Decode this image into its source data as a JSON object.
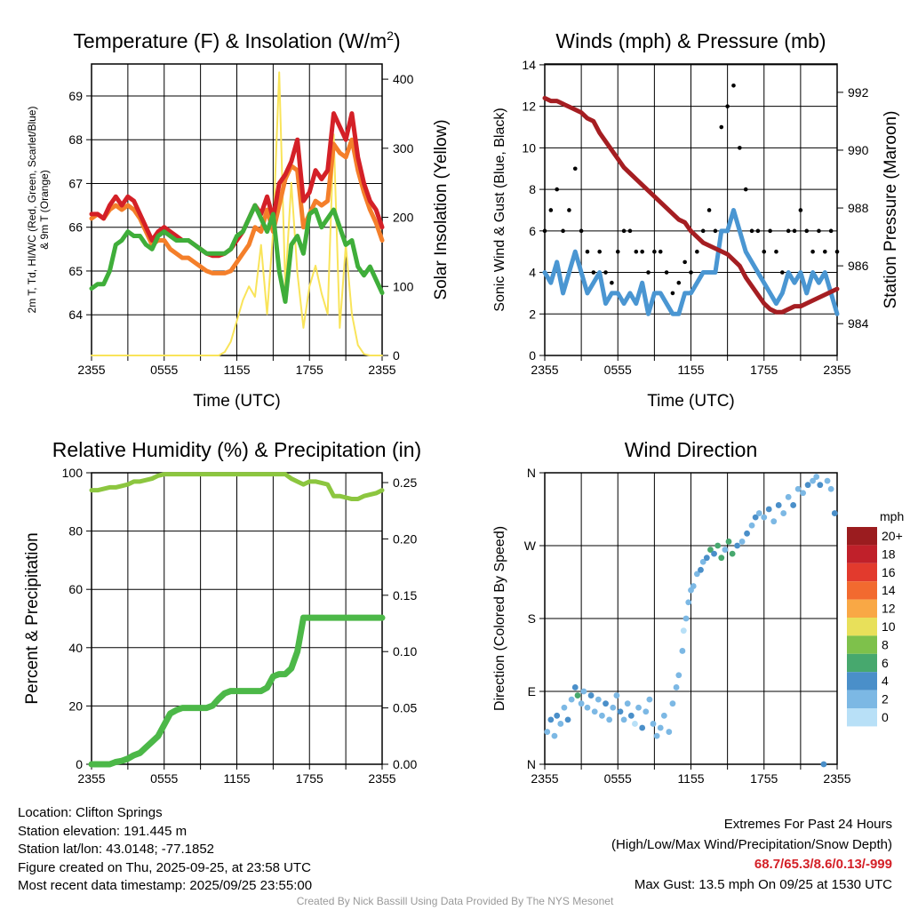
{
  "chart_data": [
    {
      "type": "line",
      "title": "Temperature (F) & Insolation (W/m2)",
      "xlabel": "Time (UTC)",
      "ylabel": "2m T, Td, HI/WC (Red, Green, Scarlet/Blue) & 9m T (Orange)",
      "ylabel_right": "Solar Insolation (Yellow)",
      "xticks": [
        "2355",
        "0555",
        "1155",
        "1755",
        "2355"
      ],
      "yticks": [
        "64",
        "65",
        "66",
        "67",
        "68",
        "69"
      ],
      "yticks_right": [
        "0",
        "100",
        "200",
        "300",
        "400"
      ],
      "ylim": [
        63.07,
        69.73
      ],
      "ylim_right": [
        0,
        422
      ],
      "x_hours_step": 0.5,
      "series": [
        {
          "name": "2m T",
          "color": "#d42027",
          "axis": "left",
          "values": [
            66.3,
            66.3,
            66.2,
            66.5,
            66.7,
            66.5,
            66.7,
            66.6,
            66.3,
            66.0,
            65.7,
            65.9,
            66.0,
            65.9,
            65.8,
            65.7,
            65.7,
            65.6,
            65.5,
            65.4,
            65.35,
            65.35,
            65.4,
            65.5,
            65.7,
            65.9,
            66.2,
            66.5,
            66.3,
            66.7,
            66.2,
            67.0,
            67.2,
            67.5,
            68.0,
            66.6,
            66.8,
            67.3,
            67.1,
            67.3,
            68.6,
            68.3,
            68.0,
            68.6,
            67.6,
            67.0,
            66.6,
            66.4,
            66.0
          ]
        },
        {
          "name": "9m T",
          "color": "#f47f2a",
          "axis": "left",
          "values": [
            66.2,
            66.3,
            66.2,
            66.4,
            66.5,
            66.4,
            66.5,
            66.4,
            66.2,
            65.9,
            65.6,
            65.7,
            65.7,
            65.5,
            65.4,
            65.3,
            65.3,
            65.2,
            65.1,
            65.0,
            64.95,
            64.95,
            64.95,
            65.0,
            65.2,
            65.4,
            65.6,
            66.0,
            65.9,
            66.4,
            65.9,
            66.5,
            67.1,
            67.4,
            67.3,
            66.0,
            66.3,
            66.6,
            66.5,
            66.6,
            67.9,
            67.7,
            67.6,
            68.0,
            67.3,
            66.8,
            66.4,
            66.1,
            65.7
          ]
        },
        {
          "name": "Td",
          "color": "#3fae3a",
          "axis": "left",
          "values": [
            64.6,
            64.7,
            64.7,
            65.0,
            65.6,
            65.7,
            65.9,
            65.8,
            65.8,
            65.6,
            65.5,
            65.8,
            65.9,
            65.8,
            65.7,
            65.7,
            65.7,
            65.6,
            65.5,
            65.4,
            65.4,
            65.4,
            65.4,
            65.5,
            65.8,
            65.9,
            66.2,
            66.5,
            66.2,
            65.9,
            66.3,
            65.0,
            64.3,
            65.6,
            65.8,
            65.4,
            66.3,
            66.4,
            66.0,
            66.2,
            66.4,
            66.0,
            65.6,
            65.7,
            65.1,
            64.9,
            65.1,
            64.8,
            64.5
          ]
        },
        {
          "name": "Solar Insolation",
          "color": "#f9e45a",
          "axis": "right",
          "values": [
            0,
            0,
            0,
            0,
            0,
            0,
            0,
            0,
            0,
            0,
            0,
            0,
            0,
            0,
            0,
            0,
            0,
            0,
            0,
            0,
            0,
            0,
            5,
            20,
            50,
            80,
            100,
            85,
            160,
            60,
            180,
            410,
            100,
            250,
            120,
            40,
            100,
            130,
            90,
            60,
            320,
            40,
            160,
            60,
            15,
            2,
            0,
            0,
            0
          ]
        }
      ]
    },
    {
      "type": "line",
      "title": "Winds (mph) & Pressure (mb)",
      "xlabel": "Time (UTC)",
      "ylabel": "Sonic Wind & Gust (Blue, Black)",
      "ylabel_right": "Station Pressure (Maroon)",
      "xticks": [
        "2355",
        "0555",
        "1155",
        "1755",
        "2355"
      ],
      "yticks": [
        "0",
        "2",
        "4",
        "6",
        "8",
        "10",
        "12",
        "14"
      ],
      "yticks_right": [
        "984",
        "986",
        "988",
        "990",
        "992"
      ],
      "ylim": [
        0,
        14.04
      ],
      "ylim_right": [
        982.9,
        992.98
      ],
      "x_hours_step": 0.5,
      "series": [
        {
          "name": "Sonic Wind",
          "color": "#4a96d2",
          "axis": "left",
          "values": [
            4,
            3.5,
            4.5,
            3,
            4,
            5,
            4,
            3,
            3.5,
            4,
            2.5,
            3,
            3,
            2.5,
            3,
            2.5,
            3.5,
            2,
            3,
            3,
            2.5,
            2,
            2,
            3,
            3,
            3.5,
            4,
            4,
            4,
            6,
            6,
            7,
            6,
            5,
            4.5,
            4,
            3.5,
            3,
            2.5,
            3,
            4,
            3.5,
            4,
            3,
            4,
            3.5,
            4,
            3,
            2
          ]
        },
        {
          "name": "Gust",
          "color": "#000000",
          "axis": "left",
          "style": "dots",
          "values": [
            6,
            7,
            8,
            6,
            7,
            9,
            6,
            5,
            4,
            5,
            4,
            3.5,
            5,
            6,
            6,
            5,
            5,
            4,
            5,
            5,
            4,
            3,
            3.5,
            4.5,
            4,
            5,
            6,
            7,
            6,
            11,
            12,
            13,
            10,
            8,
            6,
            6,
            5,
            6,
            5,
            4,
            6,
            6,
            7,
            6,
            5,
            6,
            5,
            6,
            5
          ]
        },
        {
          "name": "Station Pressure",
          "color": "#a51e22",
          "axis": "right",
          "values": [
            991.8,
            991.7,
            991.7,
            991.6,
            991.5,
            991.4,
            991.3,
            991.1,
            991.0,
            990.6,
            990.3,
            990.0,
            989.7,
            989.4,
            989.2,
            989.0,
            988.8,
            988.6,
            988.4,
            988.2,
            988.0,
            987.8,
            987.6,
            987.5,
            987.2,
            987.0,
            986.8,
            986.7,
            986.6,
            986.5,
            986.4,
            986.2,
            986.0,
            985.6,
            985.3,
            985.0,
            984.7,
            984.5,
            984.4,
            984.4,
            984.5,
            984.6,
            984.6,
            984.7,
            984.8,
            984.9,
            985.0,
            985.1,
            985.2
          ]
        }
      ]
    },
    {
      "type": "line",
      "title": "Relative Humidity (%) & Precipitation (in)",
      "xlabel": "",
      "ylabel": "Percent & Precipitation",
      "xticks": [
        "2355",
        "0555",
        "1155",
        "1755",
        "2355"
      ],
      "yticks": [
        "0",
        "20",
        "40",
        "60",
        "80",
        "100"
      ],
      "yticks_right": [
        "0.00",
        "0.05",
        "0.10",
        "0.15",
        "0.20",
        "0.25"
      ],
      "ylim": [
        0,
        100
      ],
      "ylim_right": [
        0,
        0.2587
      ],
      "x_hours_step": 0.5,
      "series": [
        {
          "name": "Relative Humidity",
          "color": "#8cc63f",
          "axis": "left",
          "values": [
            94,
            94,
            94.5,
            95,
            95,
            95.5,
            96,
            97,
            97,
            97.5,
            98,
            99,
            99.5,
            99.5,
            99.5,
            99.5,
            99.5,
            99.5,
            99.5,
            99.5,
            99.5,
            99.5,
            99.5,
            99.5,
            99.5,
            99.5,
            99.5,
            99.5,
            99.5,
            99.5,
            99.5,
            99.5,
            99.5,
            98,
            97,
            96,
            97,
            97,
            96.5,
            96,
            92,
            92,
            91.5,
            91,
            91,
            92,
            92.5,
            93,
            94
          ]
        },
        {
          "name": "Precipitation",
          "color": "#4cb848",
          "axis": "right",
          "values": [
            0,
            0,
            0,
            0,
            0.002,
            0.003,
            0.005,
            0.008,
            0.01,
            0.015,
            0.02,
            0.025,
            0.035,
            0.045,
            0.048,
            0.05,
            0.05,
            0.05,
            0.05,
            0.05,
            0.052,
            0.058,
            0.063,
            0.065,
            0.065,
            0.065,
            0.065,
            0.065,
            0.065,
            0.068,
            0.078,
            0.08,
            0.08,
            0.085,
            0.1,
            0.13,
            0.13,
            0.13,
            0.13,
            0.13,
            0.13,
            0.13,
            0.13,
            0.13,
            0.13,
            0.13,
            0.13,
            0.13,
            0.13
          ]
        }
      ]
    },
    {
      "type": "scatter",
      "title": "Wind Direction",
      "xlabel": "",
      "ylabel": "Direction (Colored By Speed)",
      "xticks": [
        "2355",
        "0555",
        "1155",
        "1755",
        "2355"
      ],
      "yticks": [
        "N",
        "E",
        "S",
        "W",
        "N"
      ],
      "ylim": [
        0,
        360
      ],
      "points_hour_deg_mph": [
        [
          0.2,
          40,
          3
        ],
        [
          0.5,
          55,
          4
        ],
        [
          0.8,
          35,
          3
        ],
        [
          1.0,
          60,
          4
        ],
        [
          1.3,
          50,
          2
        ],
        [
          1.6,
          70,
          3
        ],
        [
          1.9,
          55,
          4
        ],
        [
          2.2,
          80,
          3
        ],
        [
          2.5,
          95,
          4
        ],
        [
          2.7,
          85,
          6
        ],
        [
          3.0,
          75,
          3
        ],
        [
          3.2,
          90,
          2
        ],
        [
          3.5,
          70,
          3
        ],
        [
          3.8,
          85,
          4
        ],
        [
          4.1,
          65,
          2
        ],
        [
          4.4,
          80,
          3
        ],
        [
          4.7,
          60,
          3
        ],
        [
          5.0,
          75,
          4
        ],
        [
          5.3,
          55,
          2
        ],
        [
          5.6,
          70,
          3
        ],
        [
          5.9,
          85,
          3
        ],
        [
          6.2,
          65,
          4
        ],
        [
          6.5,
          55,
          3
        ],
        [
          6.8,
          75,
          2
        ],
        [
          7.1,
          60,
          4
        ],
        [
          7.4,
          50,
          1
        ],
        [
          7.7,
          70,
          3
        ],
        [
          8.0,
          45,
          4
        ],
        [
          8.3,
          65,
          3
        ],
        [
          8.6,
          80,
          2
        ],
        [
          8.9,
          50,
          3
        ],
        [
          9.2,
          35,
          2
        ],
        [
          9.5,
          45,
          3
        ],
        [
          9.8,
          60,
          2
        ],
        [
          10.2,
          40,
          3
        ],
        [
          10.5,
          75,
          3
        ],
        [
          10.8,
          95,
          2
        ],
        [
          11.0,
          110,
          3
        ],
        [
          11.3,
          140,
          2
        ],
        [
          11.4,
          165,
          1
        ],
        [
          11.6,
          180,
          2
        ],
        [
          11.8,
          200,
          3
        ],
        [
          12.0,
          215,
          3
        ],
        [
          12.2,
          220,
          2
        ],
        [
          12.5,
          235,
          3
        ],
        [
          12.8,
          240,
          4
        ],
        [
          13.0,
          250,
          3
        ],
        [
          13.3,
          255,
          4
        ],
        [
          13.6,
          265,
          7
        ],
        [
          13.9,
          260,
          4
        ],
        [
          14.2,
          270,
          6
        ],
        [
          14.5,
          255,
          7
        ],
        [
          14.8,
          265,
          3
        ],
        [
          15.1,
          275,
          6
        ],
        [
          15.4,
          260,
          7
        ],
        [
          15.8,
          270,
          4
        ],
        [
          16.2,
          275,
          3
        ],
        [
          16.6,
          285,
          4
        ],
        [
          17.0,
          295,
          3
        ],
        [
          17.3,
          305,
          4
        ],
        [
          17.6,
          310,
          2
        ],
        [
          18.0,
          305,
          3
        ],
        [
          18.4,
          315,
          4
        ],
        [
          18.8,
          300,
          3
        ],
        [
          19.2,
          320,
          4
        ],
        [
          19.6,
          310,
          2
        ],
        [
          20.0,
          330,
          3
        ],
        [
          20.4,
          320,
          4
        ],
        [
          20.8,
          340,
          3
        ],
        [
          21.2,
          335,
          2
        ],
        [
          21.6,
          345,
          4
        ],
        [
          22.0,
          350,
          3
        ],
        [
          22.3,
          355,
          2
        ],
        [
          22.6,
          345,
          4
        ],
        [
          22.9,
          0,
          4
        ],
        [
          23.2,
          350,
          3
        ],
        [
          23.5,
          340,
          2
        ],
        [
          23.8,
          310,
          4
        ]
      ]
    }
  ],
  "colorbar": {
    "title": "mph",
    "labels": [
      "20+",
      "18",
      "16",
      "14",
      "12",
      "10",
      "8",
      "6",
      "4",
      "2",
      "0"
    ],
    "colors": [
      "#9b1c1f",
      "#c0202a",
      "#e23a2d",
      "#f26a2f",
      "#f9a845",
      "#e8e05a",
      "#7ec14b",
      "#47a86e",
      "#4a8fc9",
      "#7cb8e4",
      "#b8e0f7"
    ]
  },
  "info": {
    "location": "Location: Clifton Springs",
    "elevation": "Station elevation: 191.445 m",
    "latlon": "Station lat/lon: 43.0148; -77.1852",
    "created": "Figure created on Thu, 2025-09-25, at 23:58 UTC",
    "recent": "Most recent data timestamp: 2025/09/25 23:55:00"
  },
  "extremes": {
    "title": "Extremes For Past 24 Hours",
    "subtitle": "(High/Low/Max Wind/Precipitation/Snow Depth)",
    "values": "68.7/65.3/8.6/0.13/-999",
    "values_color": "#d42027",
    "gust": "Max Gust: 13.5 mph On 09/25 at 1530 UTC"
  },
  "credit": "Created By Nick Bassill Using Data Provided By The NYS Mesonet"
}
